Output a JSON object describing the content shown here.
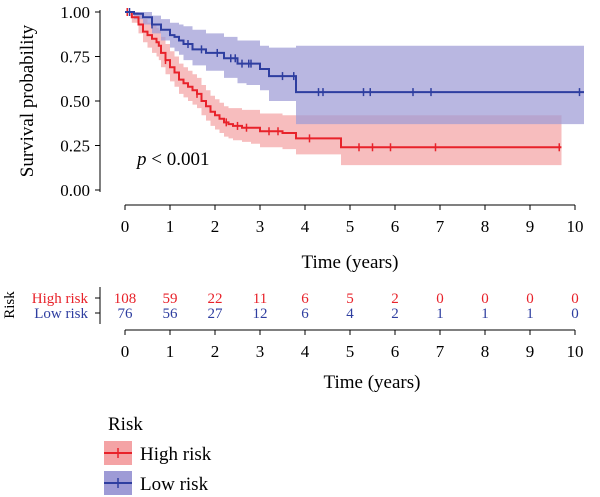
{
  "chart_data": [
    {
      "type": "line",
      "chart_kind": "kaplan-meier",
      "title": "",
      "xlabel": "Time (years)",
      "ylabel": "Survival probability",
      "xlim": [
        -0.2,
        10.3
      ],
      "ylim": [
        0,
        1.0
      ],
      "x_ticks": [
        0,
        1,
        2,
        3,
        4,
        5,
        6,
        7,
        8,
        9,
        10
      ],
      "y_ticks": [
        "0.00",
        "0.25",
        "0.50",
        "0.75",
        "1.00"
      ],
      "annotation": {
        "p_symbol": "p",
        "p_rest": " < 0.001"
      },
      "series": [
        {
          "name": "High risk",
          "color": "#e8222a",
          "band_color": "#f4a3a5",
          "x": [
            0,
            0.15,
            0.3,
            0.4,
            0.5,
            0.6,
            0.7,
            0.75,
            0.8,
            0.9,
            1.0,
            1.1,
            1.2,
            1.3,
            1.4,
            1.5,
            1.6,
            1.7,
            1.8,
            1.9,
            2.0,
            2.1,
            2.2,
            2.3,
            2.4,
            2.6,
            2.8,
            3.0,
            3.3,
            3.5,
            3.8,
            4.8,
            9.7
          ],
          "y": [
            1.0,
            0.97,
            0.93,
            0.89,
            0.87,
            0.85,
            0.83,
            0.81,
            0.77,
            0.73,
            0.69,
            0.66,
            0.62,
            0.6,
            0.58,
            0.56,
            0.54,
            0.5,
            0.47,
            0.44,
            0.42,
            0.4,
            0.38,
            0.37,
            0.36,
            0.35,
            0.35,
            0.33,
            0.33,
            0.32,
            0.29,
            0.24,
            0.24
          ],
          "lower": [
            1.0,
            0.94,
            0.88,
            0.83,
            0.8,
            0.77,
            0.75,
            0.73,
            0.69,
            0.65,
            0.61,
            0.58,
            0.54,
            0.52,
            0.5,
            0.48,
            0.46,
            0.42,
            0.39,
            0.36,
            0.34,
            0.32,
            0.3,
            0.29,
            0.28,
            0.27,
            0.26,
            0.24,
            0.24,
            0.23,
            0.2,
            0.14,
            0.14
          ],
          "upper": [
            1.0,
            1.0,
            0.99,
            0.96,
            0.94,
            0.93,
            0.91,
            0.9,
            0.86,
            0.82,
            0.78,
            0.75,
            0.71,
            0.69,
            0.67,
            0.65,
            0.63,
            0.59,
            0.56,
            0.53,
            0.51,
            0.49,
            0.47,
            0.46,
            0.46,
            0.45,
            0.45,
            0.43,
            0.43,
            0.42,
            0.42,
            0.42,
            0.42
          ],
          "censor_x": [
            0.05,
            0.9,
            1.6,
            2.25,
            2.5,
            2.7,
            3.2,
            3.4,
            4.1,
            5.2,
            5.5,
            5.9,
            6.9,
            9.65
          ]
        },
        {
          "name": "Low risk",
          "color": "#2e3ea0",
          "band_color": "#9e9bd6",
          "x": [
            0,
            0.2,
            0.4,
            0.6,
            0.8,
            1.0,
            1.1,
            1.2,
            1.3,
            1.5,
            1.6,
            1.8,
            2.0,
            2.2,
            2.5,
            2.7,
            3.0,
            3.2,
            3.8,
            10.2
          ],
          "y": [
            1.0,
            0.99,
            0.97,
            0.93,
            0.9,
            0.87,
            0.86,
            0.84,
            0.82,
            0.79,
            0.79,
            0.77,
            0.77,
            0.74,
            0.71,
            0.71,
            0.68,
            0.64,
            0.55,
            0.55
          ],
          "lower": [
            1.0,
            0.96,
            0.93,
            0.88,
            0.84,
            0.8,
            0.78,
            0.76,
            0.73,
            0.7,
            0.7,
            0.67,
            0.67,
            0.63,
            0.6,
            0.59,
            0.56,
            0.5,
            0.37,
            0.37
          ],
          "upper": [
            1.0,
            1.0,
            1.0,
            0.98,
            0.96,
            0.94,
            0.94,
            0.93,
            0.92,
            0.9,
            0.9,
            0.88,
            0.88,
            0.86,
            0.84,
            0.84,
            0.81,
            0.8,
            0.81,
            0.81
          ],
          "censor_x": [
            0.1,
            0.6,
            1.4,
            1.7,
            2.05,
            2.35,
            2.45,
            2.6,
            2.75,
            2.8,
            3.5,
            3.75,
            4.3,
            4.4,
            5.3,
            5.45,
            6.4,
            6.8,
            10.1
          ]
        }
      ]
    },
    {
      "type": "table",
      "row_title": "Risk",
      "xlabel": "Time (years)",
      "x_ticks": [
        0,
        1,
        2,
        3,
        4,
        5,
        6,
        7,
        8,
        9,
        10
      ],
      "rows": [
        {
          "name": "High risk",
          "color": "#e8222a",
          "values": [
            108,
            59,
            22,
            11,
            6,
            5,
            2,
            0,
            0,
            0,
            0
          ]
        },
        {
          "name": "Low risk",
          "color": "#2e3ea0",
          "values": [
            76,
            56,
            27,
            12,
            6,
            4,
            2,
            1,
            1,
            1,
            0
          ]
        }
      ]
    }
  ],
  "legend": {
    "title": "Risk",
    "items": [
      {
        "label": "High risk",
        "color": "#e8222a",
        "fill": "#f4a3a5"
      },
      {
        "label": "Low risk",
        "color": "#2e3ea0",
        "fill": "#9e9bd6"
      }
    ]
  }
}
